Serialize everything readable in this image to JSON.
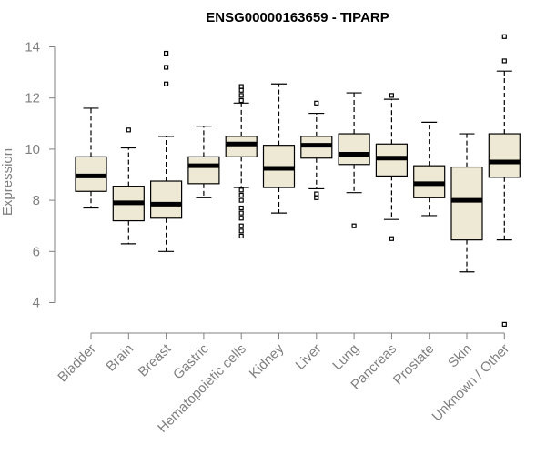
{
  "chart_data": {
    "type": "boxplot",
    "title": "ENSG00000163659 - TIPARP",
    "xlabel": "",
    "ylabel": "Expression",
    "ylim": [
      3.2,
      14.6
    ],
    "yticks": [
      4,
      6,
      8,
      10,
      12,
      14
    ],
    "grid": false,
    "box_color": "#eee9d4",
    "categories": [
      "Bladder",
      "Brain",
      "Breast",
      "Gastric",
      "Hematopoietic cells",
      "Kidney",
      "Liver",
      "Lung",
      "Pancreas",
      "Prostate",
      "Skin",
      "Unknown / Other"
    ],
    "boxes": [
      {
        "min": 7.7,
        "q1": 8.35,
        "median": 8.95,
        "q3": 9.7,
        "max": 11.6,
        "outliers": []
      },
      {
        "min": 6.3,
        "q1": 7.2,
        "median": 7.9,
        "q3": 8.55,
        "max": 10.05,
        "outliers": [
          10.75
        ]
      },
      {
        "min": 6.0,
        "q1": 7.3,
        "median": 7.85,
        "q3": 8.75,
        "max": 10.5,
        "outliers": [
          12.55,
          13.2,
          13.75
        ]
      },
      {
        "min": 8.1,
        "q1": 8.65,
        "median": 9.35,
        "q3": 9.7,
        "max": 10.9,
        "outliers": []
      },
      {
        "min": 8.5,
        "q1": 9.7,
        "median": 10.2,
        "q3": 10.5,
        "max": 11.8,
        "outliers": [
          6.6,
          6.8,
          7.0,
          7.3,
          7.5,
          7.7,
          8.0,
          8.2,
          8.4,
          11.9,
          12.1,
          12.3,
          12.45
        ]
      },
      {
        "min": 7.5,
        "q1": 8.5,
        "median": 9.25,
        "q3": 10.15,
        "max": 12.55,
        "outliers": []
      },
      {
        "min": 8.45,
        "q1": 9.65,
        "median": 10.15,
        "q3": 10.5,
        "max": 11.4,
        "outliers": [
          8.1,
          8.25,
          11.8
        ]
      },
      {
        "min": 8.3,
        "q1": 9.4,
        "median": 9.8,
        "q3": 10.6,
        "max": 12.2,
        "outliers": [
          7.0
        ]
      },
      {
        "min": 7.25,
        "q1": 8.95,
        "median": 9.65,
        "q3": 10.2,
        "max": 11.95,
        "outliers": [
          6.5,
          12.1
        ]
      },
      {
        "min": 7.4,
        "q1": 8.1,
        "median": 8.65,
        "q3": 9.35,
        "max": 11.05,
        "outliers": []
      },
      {
        "min": 5.2,
        "q1": 6.45,
        "median": 8.0,
        "q3": 9.3,
        "max": 10.6,
        "outliers": []
      },
      {
        "min": 6.45,
        "q1": 8.9,
        "median": 9.5,
        "q3": 10.6,
        "max": 13.05,
        "outliers": [
          3.15,
          13.45,
          14.4
        ]
      }
    ]
  }
}
